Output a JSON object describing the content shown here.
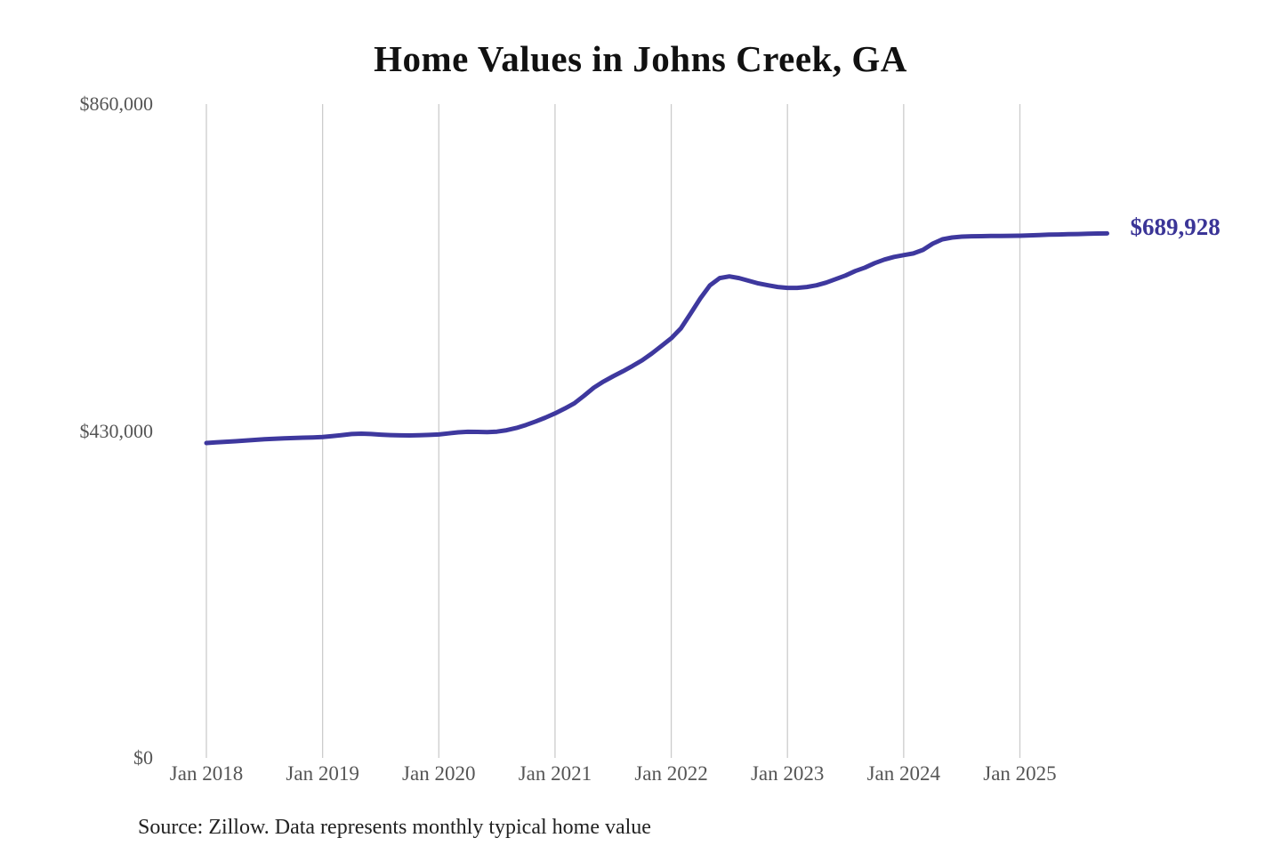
{
  "title": "Home Values in Johns Creek, GA",
  "source_note": "Source: Zillow. Data represents monthly typical home value",
  "colors": {
    "line": "#3e389e",
    "end_label": "#3b3597",
    "gridline": "#cccccc",
    "axis_text": "#555555",
    "title_text": "#111111",
    "source_text": "#222222",
    "background": "#ffffff"
  },
  "chart_data": {
    "type": "line",
    "title": "Home Values in Johns Creek, GA",
    "xlabel": "",
    "ylabel": "",
    "ylim": [
      0,
      860000
    ],
    "grid": "vertical-only",
    "legend": "none",
    "end_label": "$689,928",
    "end_value": 689928,
    "y_ticks": [
      {
        "label": "$860,000",
        "value": 860000
      },
      {
        "label": "$430,000",
        "value": 430000
      },
      {
        "label": "$0",
        "value": 0
      }
    ],
    "x_ticks": [
      {
        "label": "Jan 2018",
        "month_index": 0
      },
      {
        "label": "Jan 2019",
        "month_index": 12
      },
      {
        "label": "Jan 2020",
        "month_index": 24
      },
      {
        "label": "Jan 2021",
        "month_index": 36
      },
      {
        "label": "Jan 2022",
        "month_index": 48
      },
      {
        "label": "Jan 2023",
        "month_index": 60
      },
      {
        "label": "Jan 2024",
        "month_index": 72
      },
      {
        "label": "Jan 2025",
        "month_index": 84
      }
    ],
    "x": [
      "2018-01",
      "2018-02",
      "2018-03",
      "2018-04",
      "2018-05",
      "2018-06",
      "2018-07",
      "2018-08",
      "2018-09",
      "2018-10",
      "2018-11",
      "2018-12",
      "2019-01",
      "2019-02",
      "2019-03",
      "2019-04",
      "2019-05",
      "2019-06",
      "2019-07",
      "2019-08",
      "2019-09",
      "2019-10",
      "2019-11",
      "2019-12",
      "2020-01",
      "2020-02",
      "2020-03",
      "2020-04",
      "2020-05",
      "2020-06",
      "2020-07",
      "2020-08",
      "2020-09",
      "2020-10",
      "2020-11",
      "2020-12",
      "2021-01",
      "2021-02",
      "2021-03",
      "2021-04",
      "2021-05",
      "2021-06",
      "2021-07",
      "2021-08",
      "2021-09",
      "2021-10",
      "2021-11",
      "2021-12",
      "2022-01",
      "2022-02",
      "2022-03",
      "2022-04",
      "2022-05",
      "2022-06",
      "2022-07",
      "2022-08",
      "2022-09",
      "2022-10",
      "2022-11",
      "2022-12",
      "2023-01",
      "2023-02",
      "2023-03",
      "2023-04",
      "2023-05",
      "2023-06",
      "2023-07",
      "2023-08",
      "2023-09",
      "2023-10",
      "2023-11",
      "2023-12",
      "2024-01",
      "2024-02",
      "2024-03",
      "2024-04",
      "2024-05",
      "2024-06",
      "2024-07",
      "2024-08",
      "2024-09",
      "2024-10",
      "2024-11",
      "2024-12",
      "2025-01",
      "2025-02",
      "2025-03",
      "2025-04",
      "2025-05",
      "2025-06",
      "2025-07",
      "2025-08",
      "2025-09",
      "2025-10"
    ],
    "values": [
      414200,
      415000,
      415800,
      416600,
      417500,
      418300,
      419100,
      419800,
      420300,
      420800,
      421200,
      421600,
      422000,
      423200,
      424600,
      426000,
      426500,
      426000,
      425200,
      424600,
      424300,
      424200,
      424400,
      424800,
      425400,
      426800,
      428300,
      429000,
      428800,
      428500,
      429200,
      431000,
      434000,
      438000,
      442500,
      447500,
      453200,
      459500,
      466500,
      476500,
      487000,
      495000,
      502000,
      508500,
      515500,
      523000,
      532000,
      542000,
      552000,
      565000,
      584500,
      604300,
      621700,
      631100,
      633400,
      631100,
      627600,
      624100,
      621700,
      619400,
      618300,
      618300,
      619400,
      621700,
      625200,
      629900,
      634500,
      640400,
      645000,
      650800,
      655500,
      659000,
      661300,
      663600,
      668200,
      676400,
      682200,
      684500,
      685700,
      686100,
      686300,
      686500,
      686600,
      686700,
      686800,
      687300,
      687800,
      688200,
      688500,
      688800,
      689100,
      689400,
      689700,
      689928
    ]
  }
}
